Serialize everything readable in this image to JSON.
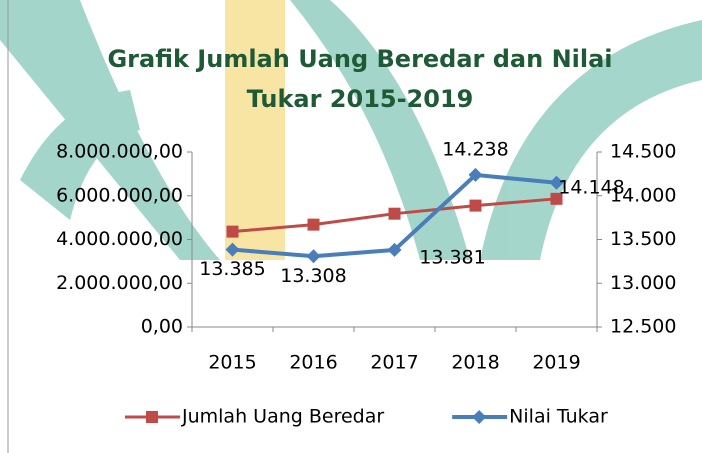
{
  "chart_data": {
    "type": "line",
    "title": "Grafik Jumlah Uang Beredar dan Nilai Tukar 2015-2019",
    "categories": [
      "2015",
      "2016",
      "2017",
      "2018",
      "2019"
    ],
    "series": [
      {
        "name": "Jumlah Uang Beredar",
        "color": "#be4b48",
        "marker": "square",
        "axis": "y",
        "values": [
          4360000,
          4680000,
          5180000,
          5550000,
          5860000
        ]
      },
      {
        "name": "Nilai Tukar",
        "color": "#4a7ebb",
        "marker": "diamond",
        "axis": "y2",
        "values": [
          13385,
          13308,
          13381,
          14238,
          14148
        ],
        "value_labels": [
          "13.385",
          "13.308",
          "13.381",
          "14.238",
          "14.148"
        ]
      }
    ],
    "ylim": [
      0,
      8000000
    ],
    "yticks": [
      {
        "value": 0,
        "label": "0,00"
      },
      {
        "value": 2000000,
        "label": "2.000.000,00"
      },
      {
        "value": 4000000,
        "label": "4.000.000,00"
      },
      {
        "value": 6000000,
        "label": "6.000.000,00"
      },
      {
        "value": 8000000,
        "label": "8.000.000,00"
      }
    ],
    "y2lim": [
      12500,
      14500
    ],
    "y2ticks": [
      {
        "value": 12500,
        "label": "12.500"
      },
      {
        "value": 13000,
        "label": "13.000"
      },
      {
        "value": 13500,
        "label": "13.500"
      },
      {
        "value": 14000,
        "label": "14.000"
      },
      {
        "value": 14500,
        "label": "14.500"
      }
    ],
    "grid": false,
    "legend": "bottom"
  }
}
